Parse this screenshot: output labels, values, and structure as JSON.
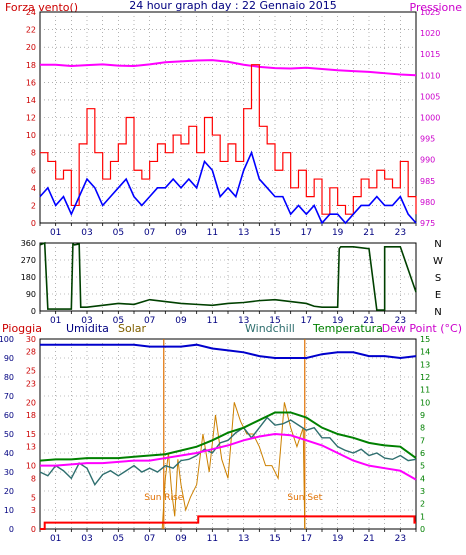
{
  "header": {
    "left_title": "Forza vento()",
    "center_title": "24 hour graph day : 22 Gennaio 2015",
    "right_title": "Pressione"
  },
  "colors": {
    "wind": "#ff0000",
    "gust_avg": "#0000ff",
    "pressure": "#ff00ff",
    "direction": "#004000",
    "rain": "#ff0000",
    "humidity": "#0000cc",
    "solar": "#cc8000",
    "windchill": "#2f6f6f",
    "temperature": "#008000",
    "dewpoint": "#ff00ff",
    "axis_red": "#cc0000",
    "axis_pink": "#cc00cc",
    "axis_green": "#008000",
    "sun_marker": "#e07000",
    "grid": "#808080"
  },
  "chart_data": [
    {
      "type": "line",
      "id": "wind-pressure",
      "title": "24 hour graph day : 22 Gennaio 2015",
      "x_ticks": [
        "01",
        "03",
        "05",
        "07",
        "09",
        "11",
        "13",
        "15",
        "17",
        "19",
        "21",
        "23"
      ],
      "xlim": [
        0,
        24
      ],
      "left_axis": {
        "label": "Forza vento()",
        "ylim": [
          0,
          24
        ],
        "ticks": [
          "0",
          "2",
          "4",
          "6",
          "8",
          "10",
          "12",
          "14",
          "16",
          "18",
          "20",
          "22",
          "24"
        ]
      },
      "right_axis": {
        "label": "Pressione",
        "ylim": [
          975,
          1025
        ],
        "ticks": [
          "975",
          "980",
          "985",
          "990",
          "995",
          "1000",
          "1005",
          "1010",
          "1015",
          "1020",
          "1025"
        ]
      },
      "series": [
        {
          "id": "pressure",
          "axis": "right",
          "x": [
            0,
            1,
            2,
            3,
            4,
            5,
            6,
            7,
            8,
            9,
            10,
            11,
            12,
            13,
            14,
            15,
            16,
            17,
            18,
            19,
            20,
            21,
            22,
            23,
            24
          ],
          "y": [
            1012.5,
            1012.5,
            1012.2,
            1012.4,
            1012.6,
            1012.3,
            1012.2,
            1012.6,
            1013.1,
            1013.3,
            1013.5,
            1013.6,
            1013.2,
            1012.5,
            1012.0,
            1011.7,
            1011.6,
            1011.8,
            1011.5,
            1011.2,
            1011.0,
            1010.8,
            1010.5,
            1010.2,
            1010.0
          ]
        },
        {
          "id": "wind-gust",
          "axis": "left",
          "x": [
            0,
            0.5,
            1,
            1.5,
            2,
            2.5,
            3,
            3.5,
            4,
            4.5,
            5,
            5.5,
            6,
            6.5,
            7,
            7.5,
            8,
            8.5,
            9,
            9.5,
            10,
            10.5,
            11,
            11.5,
            12,
            12.5,
            13,
            13.5,
            14,
            14.5,
            15,
            15.5,
            16,
            16.5,
            17,
            17.5,
            18,
            18.5,
            19,
            19.5,
            20,
            20.5,
            21,
            21.5,
            22,
            22.5,
            23,
            23.5,
            24
          ],
          "y": [
            8,
            7,
            5,
            6,
            2,
            9,
            13,
            8,
            5,
            7,
            9,
            12,
            6,
            5,
            7,
            9,
            8,
            10,
            9,
            11,
            8,
            12,
            10,
            7,
            9,
            7,
            13,
            18,
            11,
            9,
            6,
            8,
            4,
            6,
            3,
            5,
            1,
            4,
            2,
            1,
            3,
            5,
            4,
            6,
            5,
            4,
            7,
            3,
            1
          ]
        },
        {
          "id": "wind-average",
          "axis": "left",
          "x": [
            0,
            0.5,
            1,
            1.5,
            2,
            2.5,
            3,
            3.5,
            4,
            4.5,
            5,
            5.5,
            6,
            6.5,
            7,
            7.5,
            8,
            8.5,
            9,
            9.5,
            10,
            10.5,
            11,
            11.5,
            12,
            12.5,
            13,
            13.5,
            14,
            14.5,
            15,
            15.5,
            16,
            16.5,
            17,
            17.5,
            18,
            18.5,
            19,
            19.5,
            20,
            20.5,
            21,
            21.5,
            22,
            22.5,
            23,
            23.5,
            24
          ],
          "y": [
            3,
            4,
            2,
            3,
            1,
            3,
            5,
            4,
            2,
            3,
            4,
            5,
            3,
            2,
            3,
            4,
            4,
            5,
            4,
            5,
            4,
            7,
            6,
            3,
            4,
            3,
            6,
            8,
            5,
            4,
            3,
            3,
            1,
            2,
            1,
            2,
            0,
            1,
            1,
            0,
            1,
            2,
            2,
            3,
            2,
            2,
            3,
            1,
            0
          ]
        }
      ]
    },
    {
      "type": "line",
      "id": "wind-direction",
      "x_ticks": [
        "01",
        "03",
        "05",
        "07",
        "09",
        "11",
        "13",
        "15",
        "17",
        "19",
        "21",
        "23"
      ],
      "xlim": [
        0,
        24
      ],
      "ylim": [
        0,
        360
      ],
      "left_ticks": [
        "0",
        "90",
        "180",
        "270",
        "360"
      ],
      "right_labels": [
        "N",
        "W",
        "S",
        "E",
        "N"
      ],
      "series": [
        {
          "id": "direction",
          "x": [
            0,
            0.3,
            0.5,
            1,
            1.5,
            2,
            2.1,
            2.2,
            2.5,
            2.6,
            3,
            4,
            5,
            6,
            7,
            8,
            9,
            10,
            11,
            12,
            13,
            14,
            15,
            16,
            17,
            17.5,
            18,
            18.5,
            19,
            19.1,
            19.2,
            20,
            21,
            21.5,
            22,
            22,
            23,
            24
          ],
          "y": [
            350,
            360,
            10,
            10,
            10,
            10,
            355,
            350,
            355,
            20,
            20,
            30,
            40,
            35,
            60,
            50,
            40,
            35,
            30,
            40,
            45,
            55,
            60,
            50,
            40,
            25,
            20,
            20,
            20,
            330,
            340,
            340,
            330,
            5,
            5,
            340,
            340,
            100
          ]
        }
      ]
    },
    {
      "type": "line",
      "id": "rain-temperature",
      "x_ticks": [
        "01",
        "03",
        "05",
        "07",
        "09",
        "11",
        "13",
        "15",
        "17",
        "19",
        "21",
        "23"
      ],
      "xlim": [
        0,
        24
      ],
      "legend": [
        "Pioggia",
        "Umidita",
        "Solar",
        "Windchill",
        "Temperatura",
        "Dew Point (°C)"
      ],
      "axis_humidity": {
        "ylim": [
          0,
          100
        ],
        "ticks": [
          "0",
          "10",
          "20",
          "30",
          "40",
          "50",
          "60",
          "70",
          "80",
          "90",
          "100"
        ]
      },
      "axis_rain": {
        "ylim": [
          0,
          30
        ],
        "ticks": [
          "0",
          "3",
          "5",
          "8",
          "10",
          "13",
          "15",
          "18",
          "20",
          "23",
          "25",
          "28",
          "30"
        ]
      },
      "axis_temperature": {
        "ylim": [
          0,
          15
        ],
        "ticks": [
          "0",
          "1",
          "2",
          "3",
          "4",
          "5",
          "6",
          "7",
          "8",
          "9",
          "10",
          "11",
          "12",
          "13",
          "14",
          "15"
        ]
      },
      "annotations": [
        {
          "label": "Sun Rise",
          "x": 7.9
        },
        {
          "label": "Sun Set",
          "x": 16.9
        }
      ],
      "series": [
        {
          "id": "humidity",
          "axis": "humidity",
          "x": [
            0,
            1,
            2,
            3,
            4,
            5,
            6,
            7,
            8,
            9,
            10,
            11,
            12,
            13,
            14,
            15,
            16,
            17,
            18,
            19,
            20,
            21,
            22,
            23,
            24
          ],
          "y": [
            97,
            97,
            97,
            97,
            97,
            97,
            97,
            96,
            96,
            96,
            97,
            95,
            94,
            93,
            91,
            90,
            90,
            90,
            92,
            93,
            93,
            91,
            91,
            90,
            91
          ]
        },
        {
          "id": "solar",
          "axis": "rain",
          "x": [
            7.8,
            8.0,
            8.2,
            8.4,
            8.6,
            8.8,
            9.0,
            9.3,
            9.6,
            10.0,
            10.4,
            10.8,
            11.2,
            11.6,
            12.0,
            12.4,
            12.8,
            13.2,
            13.6,
            14.0,
            14.4,
            14.8,
            15.2,
            15.6,
            16.0,
            16.4,
            16.8,
            16.9
          ],
          "y": [
            0,
            8,
            12,
            6,
            2,
            11,
            7,
            3,
            5,
            7,
            15,
            9,
            18,
            11,
            8,
            20,
            17,
            15,
            15,
            13,
            10,
            10,
            8,
            20,
            16,
            13,
            16,
            0
          ]
        },
        {
          "id": "windchill",
          "axis": "temperature",
          "x": [
            0,
            0.5,
            1,
            1.5,
            2,
            2.5,
            3,
            3.5,
            4,
            4.5,
            5,
            5.5,
            6,
            6.5,
            7,
            7.5,
            8,
            8.5,
            9,
            9.5,
            10,
            10.5,
            11,
            11.5,
            12,
            12.5,
            13,
            13.5,
            14,
            14.5,
            15,
            15.5,
            16,
            16.5,
            17,
            17.5,
            18,
            18.5,
            19,
            19.5,
            20,
            20.5,
            21,
            21.5,
            22,
            22.5,
            23,
            23.5,
            24
          ],
          "y": [
            4.5,
            4.2,
            5.0,
            4.6,
            4.0,
            5.2,
            4.8,
            3.5,
            4.3,
            4.6,
            4.2,
            4.6,
            5.0,
            4.5,
            4.8,
            4.5,
            5.0,
            4.8,
            5.4,
            5.5,
            5.8,
            6.3,
            6.0,
            6.8,
            7.0,
            7.6,
            8.0,
            7.2,
            8.0,
            8.8,
            8.2,
            8.3,
            8.6,
            8.2,
            7.8,
            8.0,
            7.2,
            7.2,
            6.5,
            6.2,
            6.0,
            6.3,
            5.8,
            6.0,
            5.6,
            5.5,
            5.8,
            5.4,
            5.5
          ]
        },
        {
          "id": "temperature",
          "axis": "temperature",
          "x": [
            0,
            1,
            2,
            3,
            4,
            5,
            6,
            7,
            8,
            9,
            10,
            11,
            12,
            13,
            14,
            15,
            16,
            17,
            18,
            19,
            20,
            21,
            22,
            23,
            24
          ],
          "y": [
            5.4,
            5.5,
            5.5,
            5.6,
            5.6,
            5.6,
            5.7,
            5.8,
            5.9,
            6.2,
            6.5,
            7.0,
            7.6,
            8.0,
            8.6,
            9.2,
            9.2,
            8.8,
            8.0,
            7.5,
            7.2,
            6.8,
            6.6,
            6.5,
            5.6
          ]
        },
        {
          "id": "dewpoint",
          "axis": "temperature",
          "x": [
            0,
            1,
            2,
            3,
            4,
            5,
            6,
            7,
            8,
            9,
            10,
            11,
            12,
            13,
            14,
            15,
            16,
            17,
            18,
            19,
            20,
            21,
            22,
            23,
            24
          ],
          "y": [
            5.0,
            5.0,
            5.1,
            5.2,
            5.2,
            5.3,
            5.4,
            5.4,
            5.6,
            5.8,
            6.0,
            6.3,
            6.6,
            7.0,
            7.3,
            7.5,
            7.4,
            7.0,
            6.6,
            6.0,
            5.4,
            5.0,
            4.8,
            4.6,
            3.9
          ]
        },
        {
          "id": "rain",
          "axis": "rain",
          "x": [
            0,
            0.2,
            0.3,
            10,
            10.1,
            23.8,
            23.9,
            24
          ],
          "y": [
            0,
            0,
            1,
            1,
            2,
            2,
            1,
            1
          ]
        }
      ]
    }
  ]
}
